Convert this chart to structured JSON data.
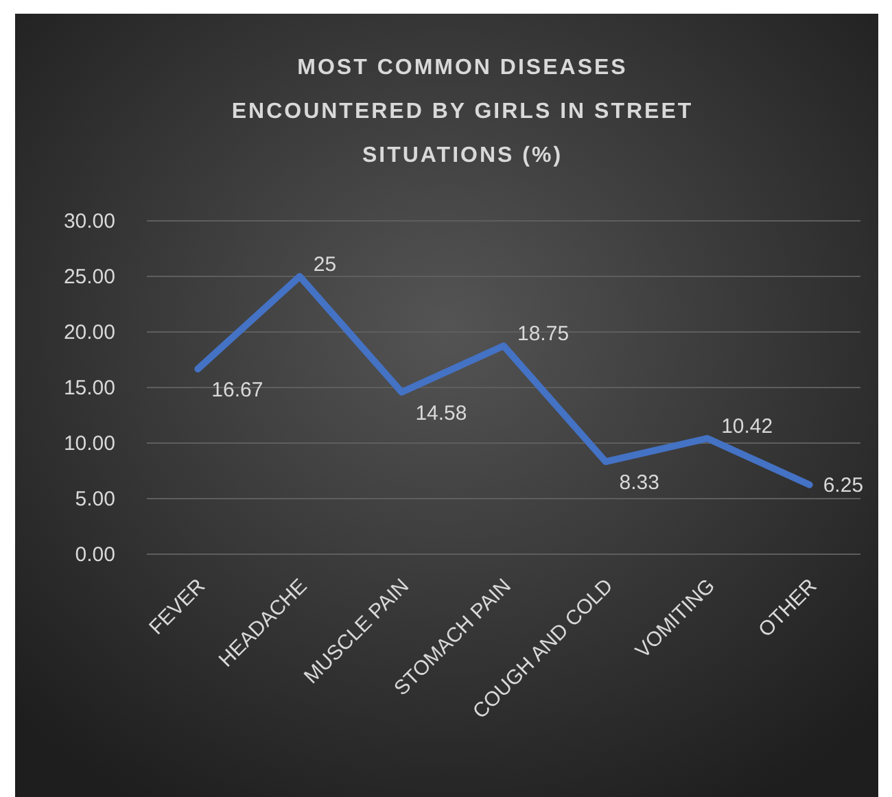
{
  "chart_data": {
    "type": "line",
    "title": "MOST COMMON DISEASES ENCOUNTERED BY GIRLS IN STREET SITUATIONS (%)",
    "categories": [
      "FEVER",
      "HEADACHE",
      "MUSCLE PAIN",
      "STOMACH PAIN",
      "COUGH AND COLD",
      "VOMITING",
      "OTHER"
    ],
    "series": [
      {
        "color": "#4472c4",
        "values": [
          16.67,
          25,
          14.58,
          18.75,
          8.33,
          10.42,
          6.25
        ]
      }
    ],
    "ylim": [
      0,
      30
    ],
    "yticks": [
      {
        "value": 0,
        "label": "0.00"
      },
      {
        "value": 5,
        "label": "5.00"
      },
      {
        "value": 10,
        "label": "10.00"
      },
      {
        "value": 15,
        "label": "15.00"
      },
      {
        "value": 20,
        "label": "20.00"
      },
      {
        "value": 25,
        "label": "25.00"
      },
      {
        "value": 30,
        "label": "30.00"
      }
    ],
    "grid": "y",
    "data_labels": true,
    "marker": "none",
    "line_style": "solid"
  }
}
